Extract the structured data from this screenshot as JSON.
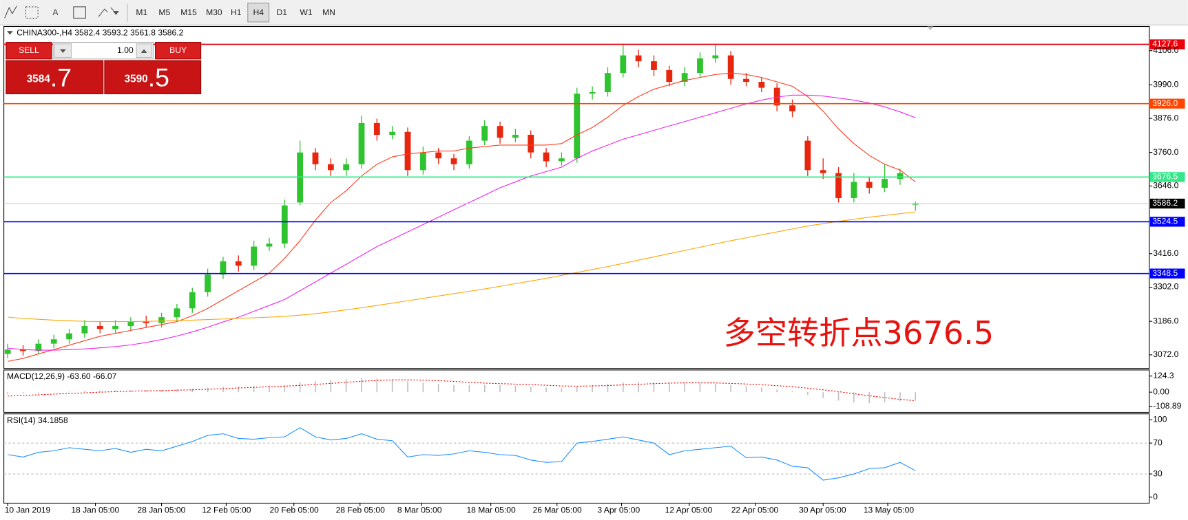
{
  "toolbar": {
    "text_tool": "A",
    "timeframes": [
      "M1",
      "M5",
      "M15",
      "M30",
      "H1",
      "H4",
      "D1",
      "W1",
      "MN"
    ],
    "active": "H4"
  },
  "trade_panel": {
    "sell": "SELL",
    "lot": "1.00",
    "buy": "BUY",
    "bid": {
      "main": "3584",
      "big": ".7"
    },
    "ask": {
      "main": "3590",
      "big": ".5"
    }
  },
  "chart_data": [
    {
      "type": "candlestick",
      "title": "CHINA300-,H4  3582.4 3593.2 3561.8 3586.2",
      "annotation": "多空转折点3676.5",
      "up_color": "#2fc42f",
      "down_color": "#e8260e",
      "xlim": [
        -0.25,
        74.2
      ],
      "ylim": [
        3025.7,
        4185.7
      ],
      "yticks": [
        {
          "value": 4106,
          "label": "4106.0"
        },
        {
          "value": 3990,
          "label": "3990.0"
        },
        {
          "value": 3876,
          "label": "3876.0"
        },
        {
          "value": 3760,
          "label": "3760.0"
        },
        {
          "value": 3646,
          "label": "3646.0"
        },
        {
          "value": 3416,
          "label": "3416.0"
        },
        {
          "value": 3302,
          "label": "3302.0"
        },
        {
          "value": 3186,
          "label": "3186.0"
        },
        {
          "value": 3072,
          "label": "3072.0"
        }
      ],
      "xticks": [
        {
          "value": 0,
          "label": "10 Jan 2019"
        },
        {
          "value": 5.7,
          "label": "18 Jan 05:00"
        },
        {
          "value": 10,
          "label": "28 Jan 05:00"
        },
        {
          "value": 14.2,
          "label": "12 Feb 05:00"
        },
        {
          "value": 18.6,
          "label": "20 Feb 05:00"
        },
        {
          "value": 22.9,
          "label": "28 Feb 05:00"
        },
        {
          "value": 26.9,
          "label": "8 Mar 05:00"
        },
        {
          "value": 31.4,
          "label": "18 Mar 05:00"
        },
        {
          "value": 35.7,
          "label": "26 Mar 05:00"
        },
        {
          "value": 39.9,
          "label": "3 Apr 05:00"
        },
        {
          "value": 44.3,
          "label": "12 Apr 05:00"
        },
        {
          "value": 48.6,
          "label": "22 Apr 05:00"
        },
        {
          "value": 53,
          "label": "30 Apr 05:00"
        },
        {
          "value": 57.2,
          "label": "13 May 05:00"
        }
      ],
      "open": [
        3075,
        3090,
        3085,
        3110,
        3125,
        3145,
        3170,
        3160,
        3170,
        3185,
        3180,
        3200,
        3230,
        3285,
        3345,
        3390,
        3375,
        3440,
        3450,
        3590,
        3760,
        3720,
        3700,
        3720,
        3860,
        3820,
        3830,
        3700,
        3760,
        3740,
        3720,
        3800,
        3850,
        3810,
        3820,
        3760,
        3730,
        3740,
        3960,
        3965,
        4030,
        4090,
        4070,
        4040,
        4000,
        4030,
        4080,
        4090,
        4010,
        4000,
        3980,
        3920,
        3800,
        3700,
        3690,
        3605,
        3660,
        3640,
        3670,
        3582.4
      ],
      "high": [
        3110,
        3105,
        3125,
        3140,
        3160,
        3190,
        3185,
        3190,
        3200,
        3205,
        3215,
        3245,
        3300,
        3365,
        3405,
        3410,
        3460,
        3470,
        3600,
        3800,
        3775,
        3740,
        3740,
        3885,
        3875,
        3850,
        3845,
        3780,
        3775,
        3755,
        3815,
        3870,
        3865,
        3840,
        3835,
        3775,
        3760,
        3980,
        3985,
        4050,
        4127.6,
        4110,
        4090,
        4055,
        4050,
        4100,
        4127.6,
        4105,
        4030,
        4015,
        3995,
        3940,
        3815,
        3740,
        3710,
        3690,
        3675,
        3720,
        3705,
        3593.2
      ],
      "low": [
        3060,
        3070,
        3075,
        3095,
        3110,
        3130,
        3145,
        3145,
        3155,
        3165,
        3165,
        3185,
        3215,
        3270,
        3330,
        3355,
        3360,
        3425,
        3435,
        3580,
        3700,
        3680,
        3680,
        3705,
        3800,
        3805,
        3680,
        3685,
        3720,
        3700,
        3705,
        3785,
        3790,
        3795,
        3740,
        3710,
        3715,
        3725,
        3940,
        3950,
        4015,
        4050,
        4020,
        3985,
        3985,
        4015,
        4065,
        3990,
        3985,
        3965,
        3900,
        3880,
        3680,
        3670,
        3590,
        3590,
        3620,
        3625,
        3650,
        3561.8
      ],
      "close": [
        3090,
        3085,
        3110,
        3125,
        3145,
        3170,
        3160,
        3170,
        3185,
        3180,
        3200,
        3230,
        3285,
        3345,
        3390,
        3375,
        3440,
        3450,
        3580,
        3760,
        3720,
        3700,
        3720,
        3860,
        3820,
        3830,
        3700,
        3760,
        3740,
        3720,
        3800,
        3850,
        3810,
        3820,
        3760,
        3730,
        3740,
        3960,
        3965,
        4030,
        4090,
        4070,
        4040,
        4000,
        4030,
        4080,
        4090,
        4010,
        4000,
        3980,
        3920,
        3900,
        3700,
        3690,
        3605,
        3660,
        3640,
        3670,
        3690,
        3586.2
      ],
      "series": [
        {
          "color": "#ff3b1f",
          "values": [
            3050,
            3060,
            3075,
            3090,
            3105,
            3120,
            3135,
            3145,
            3155,
            3165,
            3175,
            3185,
            3205,
            3230,
            3260,
            3290,
            3320,
            3350,
            3400,
            3460,
            3530,
            3590,
            3630,
            3680,
            3720,
            3745,
            3755,
            3760,
            3765,
            3765,
            3775,
            3780,
            3785,
            3785,
            3785,
            3785,
            3790,
            3820,
            3845,
            3880,
            3920,
            3950,
            3975,
            3990,
            4005,
            4015,
            4025,
            4030,
            4025,
            4015,
            4000,
            3985,
            3950,
            3900,
            3840,
            3790,
            3750,
            3720,
            3700,
            3660
          ]
        },
        {
          "color": "#ee22ee",
          "values": [
            3095,
            3090,
            3088,
            3088,
            3090,
            3092,
            3096,
            3100,
            3106,
            3114,
            3124,
            3136,
            3150,
            3166,
            3184,
            3200,
            3220,
            3240,
            3260,
            3290,
            3320,
            3350,
            3380,
            3410,
            3440,
            3465,
            3490,
            3515,
            3540,
            3565,
            3590,
            3615,
            3640,
            3660,
            3680,
            3695,
            3710,
            3740,
            3765,
            3785,
            3805,
            3820,
            3835,
            3850,
            3865,
            3880,
            3895,
            3910,
            3925,
            3938,
            3948,
            3955,
            3955,
            3952,
            3945,
            3938,
            3928,
            3915,
            3898,
            3878
          ]
        },
        {
          "color": "#ffa500",
          "values": [
            3200,
            3196,
            3193,
            3190,
            3188,
            3186,
            3185,
            3185,
            3185,
            3186,
            3187,
            3188,
            3190,
            3192,
            3194,
            3196,
            3198,
            3200,
            3203,
            3207,
            3212,
            3218,
            3225,
            3232,
            3240,
            3248,
            3256,
            3264,
            3272,
            3280,
            3288,
            3296,
            3305,
            3314,
            3323,
            3332,
            3342,
            3352,
            3362,
            3372,
            3383,
            3394,
            3405,
            3416,
            3427,
            3438,
            3449,
            3460,
            3470,
            3480,
            3490,
            3500,
            3510,
            3518,
            3526,
            3533,
            3540,
            3546,
            3552,
            3558
          ]
        }
      ],
      "levels": [
        {
          "value": 4127.6,
          "color": "#e8000b",
          "text_color": "#ffffff"
        },
        {
          "value": 3926.0,
          "label": "3926.0",
          "color": "#ff4500",
          "text_color": "#ffffff"
        },
        {
          "value": 3676.5,
          "color": "#34e88a",
          "text_color": "#ffffff"
        },
        {
          "value": 3586.2,
          "color": "#c8c8c8",
          "label_bg": "#000000",
          "text_color": "#ffffff"
        },
        {
          "value": 3524.5,
          "color": "#0000ff",
          "text_color": "#ffffff"
        },
        {
          "value": 3348.5,
          "color": "#0000ff",
          "text_color": "#ffffff"
        }
      ]
    },
    {
      "type": "macd",
      "title": "MACD(12,26,9) -63.60 -66.07",
      "ylim": [
        -155.5,
        170.9
      ],
      "yticks": [
        124.3,
        {
          "value": 0,
          "label": "0.00"
        },
        -108.89
      ],
      "series": [
        {
          "color": "#c0c0c0",
          "values": [
            -15,
            -10,
            -5,
            0,
            5,
            10,
            12,
            14,
            15,
            16,
            18,
            22,
            28,
            35,
            42,
            45,
            50,
            52,
            55,
            75,
            85,
            95,
            100,
            110,
            105,
            100,
            85,
            75,
            65,
            55,
            55,
            58,
            55,
            50,
            42,
            35,
            30,
            45,
            55,
            65,
            75,
            80,
            78,
            75,
            70,
            68,
            65,
            55,
            45,
            35,
            20,
            8,
            -20,
            -45,
            -65,
            -80,
            -85,
            -78,
            -70,
            -63.6
          ]
        },
        {
          "color": "#ff0000",
          "values": [
            -30,
            -25,
            -20,
            -15,
            -10,
            -5,
            0,
            4,
            8,
            10,
            12,
            15,
            18,
            22,
            27,
            32,
            37,
            42,
            46,
            52,
            60,
            68,
            76,
            84,
            90,
            94,
            95,
            93,
            89,
            83,
            76,
            70,
            66,
            62,
            58,
            53,
            48,
            46,
            48,
            51,
            56,
            61,
            66,
            70,
            72,
            72,
            71,
            68,
            63,
            57,
            50,
            42,
            31,
            18,
            4,
            -12,
            -28,
            -42,
            -55,
            -66.07
          ]
        }
      ]
    },
    {
      "type": "line",
      "title": "RSI(14) 34.1858",
      "ylim": [
        -7.8,
        107.8
      ],
      "yticks": [
        100,
        70,
        30,
        0
      ],
      "levels": [
        70,
        30
      ],
      "series": [
        {
          "color": "#1e90ff",
          "values": [
            55,
            52,
            58,
            60,
            64,
            62,
            60,
            63,
            58,
            62,
            60,
            66,
            72,
            80,
            82,
            76,
            75,
            77,
            78,
            90,
            78,
            74,
            76,
            82,
            75,
            73,
            52,
            55,
            54,
            56,
            60,
            58,
            55,
            54,
            48,
            45,
            46,
            70,
            72,
            75,
            78,
            74,
            70,
            55,
            60,
            62,
            64,
            66,
            51,
            52,
            48,
            40,
            38,
            22,
            25,
            30,
            37,
            38,
            45,
            34.1858
          ]
        }
      ]
    }
  ]
}
